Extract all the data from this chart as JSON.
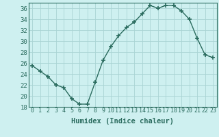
{
  "x": [
    0,
    1,
    2,
    3,
    4,
    5,
    6,
    7,
    8,
    9,
    10,
    11,
    12,
    13,
    14,
    15,
    16,
    17,
    18,
    19,
    20,
    21,
    22,
    23
  ],
  "y": [
    25.5,
    24.5,
    23.5,
    22.0,
    21.5,
    19.5,
    18.5,
    18.5,
    22.5,
    26.5,
    29.0,
    31.0,
    32.5,
    33.5,
    35.0,
    36.5,
    36.0,
    36.5,
    36.5,
    35.5,
    34.0,
    30.5,
    27.5,
    27.0
  ],
  "line_color": "#2a6b5e",
  "marker": "+",
  "marker_size": 4,
  "marker_lw": 1.2,
  "bg_color": "#cef0f0",
  "grid_color": "#aad4d4",
  "tick_color": "#2a6b5e",
  "label_color": "#2a6b5e",
  "xlabel": "Humidex (Indice chaleur)",
  "ylim": [
    18,
    37
  ],
  "yticks": [
    18,
    20,
    22,
    24,
    26,
    28,
    30,
    32,
    34,
    36
  ],
  "xticks": [
    0,
    1,
    2,
    3,
    4,
    5,
    6,
    7,
    8,
    9,
    10,
    11,
    12,
    13,
    14,
    15,
    16,
    17,
    18,
    19,
    20,
    21,
    22,
    23
  ],
  "font_family": "monospace",
  "xlabel_fontsize": 7.5,
  "tick_fontsize": 6.0,
  "ytick_fontsize": 6.5
}
